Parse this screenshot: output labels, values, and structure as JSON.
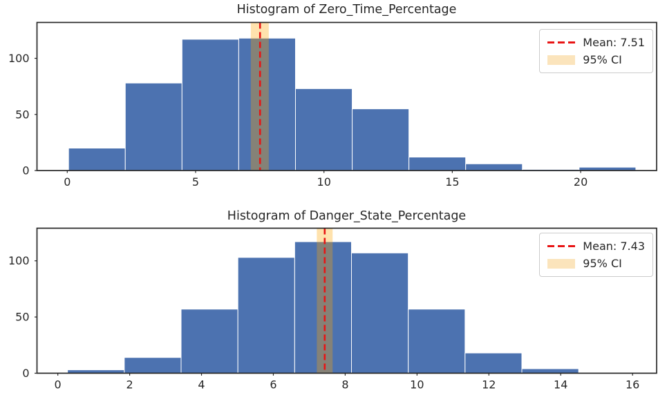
{
  "figure": {
    "background": "#ffffff"
  },
  "chart_data": [
    {
      "type": "bar",
      "subtype": "histogram",
      "title": "Histogram of Zero_Time_Percentage",
      "xlabel": "",
      "ylabel": "",
      "xticks": [
        0,
        5,
        10,
        15,
        20
      ],
      "yticks": [
        0,
        50,
        100
      ],
      "xlim": [
        -1.18,
        22.96
      ],
      "ylim": [
        0,
        132
      ],
      "grid": false,
      "bins": {
        "start": 0.05,
        "width": 2.21
      },
      "counts": [
        20,
        78,
        117,
        118,
        73,
        55,
        12,
        6,
        1,
        3
      ],
      "mean": 7.51,
      "ci95": [
        7.15,
        7.85
      ],
      "legend": {
        "position": "upper right",
        "mean_label": "Mean: 7.51",
        "ci_label": "95% CI"
      },
      "colors": {
        "bar": "#4c72b0",
        "bar_edge": "#ffffff",
        "mean_line": "#e81414",
        "ci_fill": "rgba(255,165,0,0.32)",
        "axis": "#262626"
      }
    },
    {
      "type": "bar",
      "subtype": "histogram",
      "title": "Histogram of Danger_State_Percentage",
      "xlabel": "",
      "ylabel": "",
      "xticks": [
        0,
        2,
        4,
        6,
        8,
        10,
        12,
        14,
        16
      ],
      "yticks": [
        0,
        50,
        100
      ],
      "xlim": [
        -0.58,
        16.67
      ],
      "ylim": [
        0,
        129
      ],
      "grid": false,
      "bins": {
        "start": 0.27,
        "width": 1.581
      },
      "counts": [
        3,
        14,
        57,
        103,
        117,
        107,
        57,
        18,
        4
      ],
      "mean": 7.43,
      "ci95": [
        7.21,
        7.65
      ],
      "legend": {
        "position": "upper right",
        "mean_label": "Mean: 7.43",
        "ci_label": "95% CI"
      },
      "colors": {
        "bar": "#4c72b0",
        "bar_edge": "#ffffff",
        "mean_line": "#e81414",
        "ci_fill": "rgba(255,165,0,0.32)",
        "axis": "#262626"
      }
    }
  ]
}
